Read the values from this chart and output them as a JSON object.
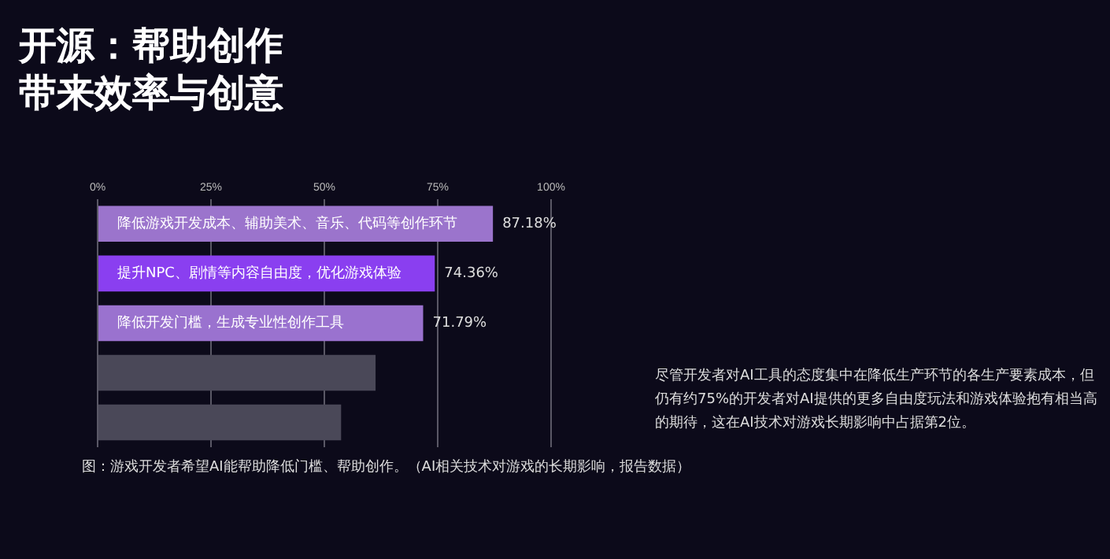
{
  "chart_data": {
    "type": "bar",
    "orientation": "horizontal",
    "title": "开源：帮助创作带来效率与创意",
    "categories": [
      "降低游戏开发成本、辅助美术、音乐、代码等创作环节",
      "提升NPC、剧情等内容自由度，优化游戏体验",
      "降低开发门槛，生成专业性创作工具",
      null,
      null
    ],
    "values": [
      87.18,
      74.36,
      71.79,
      61.3,
      53.7
    ],
    "value_labels": [
      "87.18%",
      "74.36%",
      "71.79%",
      null,
      null
    ],
    "colors": [
      "#9b74cc",
      "#8a3ff0",
      "#9a72cf",
      "#4a4858",
      "#4a4858"
    ],
    "xlim": [
      0,
      100
    ],
    "xticks": [
      {
        "value": 0,
        "label": "0%"
      },
      {
        "value": 25,
        "label": "25%"
      },
      {
        "value": 50,
        "label": "50%"
      },
      {
        "value": 75,
        "label": "75%"
      },
      {
        "value": 100,
        "label": "100%"
      }
    ],
    "grid": "x",
    "tick_labels": "x",
    "annotations": [
      "图：游戏开发者希望AI能帮助降低门槛、帮助创作。（AI相关技术对游戏的长期影响，报告数据）",
      "尽管开发者对AI工具的态度集中在降低生产环节的各生产要素成本，但仍有约75%的开发者对AI提供的更多自由度玩法和游戏体验抱有相当高的期待，这在AI技术对游戏长期影响中占据第2位。"
    ]
  }
}
